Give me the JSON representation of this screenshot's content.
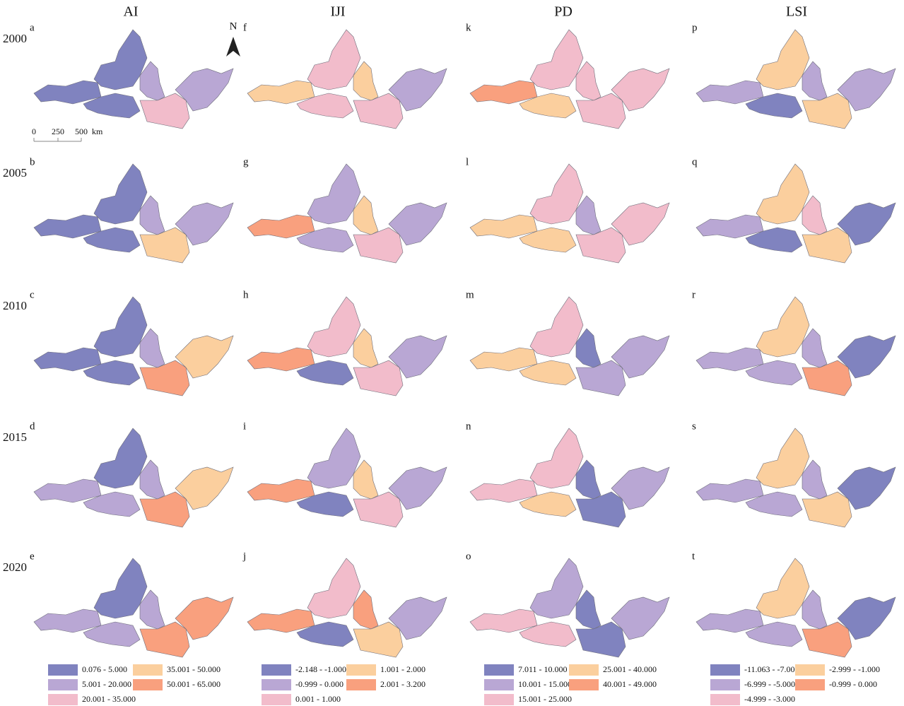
{
  "columns": [
    "AI",
    "IJI",
    "PD",
    "LSI"
  ],
  "years": [
    "2000",
    "2005",
    "2010",
    "2015",
    "2020"
  ],
  "panel_labels": [
    [
      "a",
      "b",
      "c",
      "d",
      "e"
    ],
    [
      "f",
      "g",
      "h",
      "i",
      "j"
    ],
    [
      "k",
      "l",
      "m",
      "n",
      "o"
    ],
    [
      "p",
      "q",
      "r",
      "s",
      "t"
    ]
  ],
  "north": "N",
  "scale_bar": [
    "0",
    "250",
    "500",
    "km"
  ],
  "legends": [
    {
      "items": [
        {
          "label": "0.076 - 5.000",
          "color": "#8083bf"
        },
        {
          "label": "5.001 - 20.000",
          "color": "#b9a7d4"
        },
        {
          "label": "20.001 - 35.000",
          "color": "#f2bccb"
        },
        {
          "label": "35.001 - 50.000",
          "color": "#fbcf9e"
        },
        {
          "label": "50.001 - 65.000",
          "color": "#f9a07e"
        }
      ]
    },
    {
      "items": [
        {
          "label": "-2.148 - -1.000",
          "color": "#8083bf"
        },
        {
          "label": "-0.999 - 0.000",
          "color": "#b9a7d4"
        },
        {
          "label": "0.001 - 1.000",
          "color": "#f2bccb"
        },
        {
          "label": "1.001 - 2.000",
          "color": "#fbcf9e"
        },
        {
          "label": "2.001 - 3.200",
          "color": "#f9a07e"
        }
      ]
    },
    {
      "items": [
        {
          "label": "7.011 - 10.000",
          "color": "#8083bf"
        },
        {
          "label": "10.001 - 15.000",
          "color": "#b9a7d4"
        },
        {
          "label": "15.001 - 25.000",
          "color": "#f2bccb"
        },
        {
          "label": "25.001 - 40.000",
          "color": "#fbcf9e"
        },
        {
          "label": "40.001 - 49.000",
          "color": "#f9a07e"
        }
      ]
    },
    {
      "items": [
        {
          "label": "-11.063 - -7.000",
          "color": "#8083bf"
        },
        {
          "label": "-6.999 - -5.000",
          "color": "#b9a7d4"
        },
        {
          "label": "-4.999 - -3.000",
          "color": "#f2bccb"
        },
        {
          "label": "-2.999 - -1.000",
          "color": "#fbcf9e"
        },
        {
          "label": "-0.999 - 0.000",
          "color": "#f9a07e"
        }
      ]
    }
  ]
}
